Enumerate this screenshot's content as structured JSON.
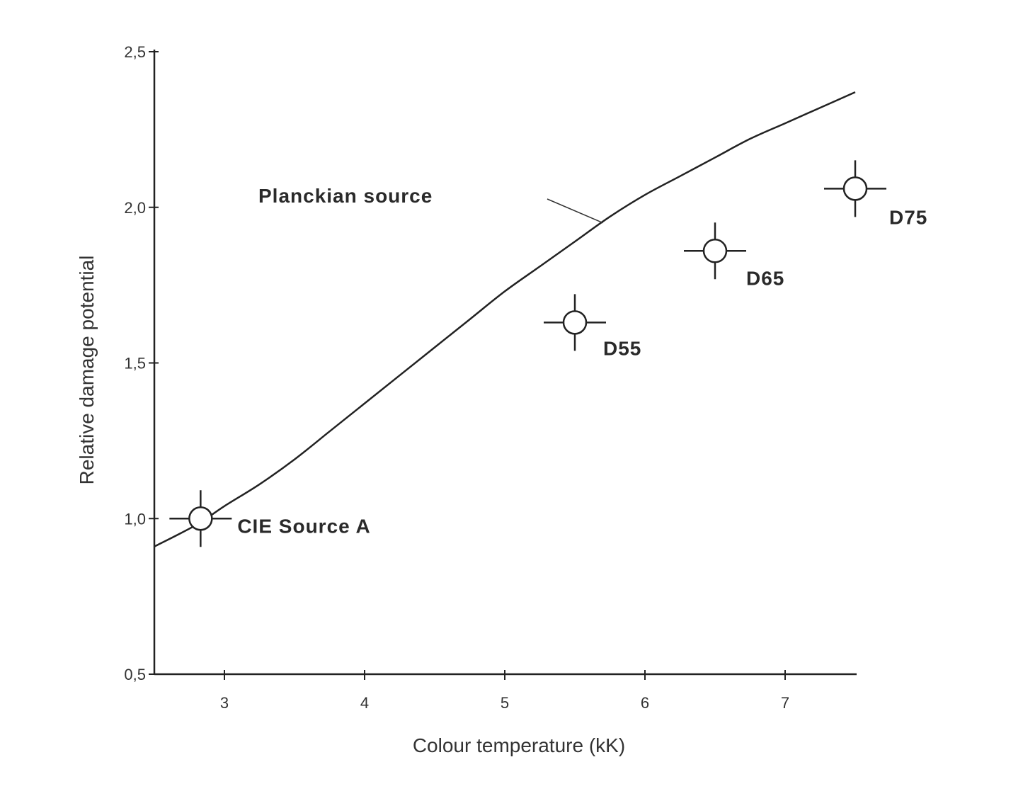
{
  "chart_data": {
    "type": "line",
    "xlabel": "Colour temperature (kK)",
    "ylabel": "Relative damage potential",
    "xlim": [
      2.5,
      7.5
    ],
    "ylim": [
      0.5,
      2.5
    ],
    "xticks": [
      {
        "value": 3,
        "label": "3"
      },
      {
        "value": 4,
        "label": "4"
      },
      {
        "value": 5,
        "label": "5"
      },
      {
        "value": 6,
        "label": "6"
      },
      {
        "value": 7,
        "label": "7"
      }
    ],
    "yticks": [
      {
        "value": 0.5,
        "label": "0,5"
      },
      {
        "value": 1.0,
        "label": "1,0"
      },
      {
        "value": 1.5,
        "label": "1,5"
      },
      {
        "value": 2.0,
        "label": "2,0"
      },
      {
        "value": 2.5,
        "label": "2,5"
      }
    ],
    "grid": false,
    "series": [
      {
        "name": "Planckian source",
        "type": "line",
        "x": [
          2.5,
          2.8,
          3.0,
          3.25,
          3.5,
          3.75,
          4.0,
          4.25,
          4.5,
          4.75,
          5.0,
          5.25,
          5.5,
          5.75,
          6.0,
          6.25,
          6.5,
          6.75,
          7.0,
          7.25,
          7.5
        ],
        "y": [
          0.91,
          0.98,
          1.04,
          1.11,
          1.19,
          1.28,
          1.37,
          1.46,
          1.55,
          1.64,
          1.73,
          1.81,
          1.89,
          1.97,
          2.04,
          2.1,
          2.16,
          2.22,
          2.27,
          2.32,
          2.37
        ]
      },
      {
        "type": "scatter",
        "points": [
          {
            "label": "CIE Source A",
            "x": 2.83,
            "y": 1.0
          },
          {
            "label": "D55",
            "x": 5.5,
            "y": 1.63
          },
          {
            "label": "D65",
            "x": 6.5,
            "y": 1.86
          },
          {
            "label": "D75",
            "x": 7.5,
            "y": 2.06
          }
        ]
      }
    ]
  }
}
